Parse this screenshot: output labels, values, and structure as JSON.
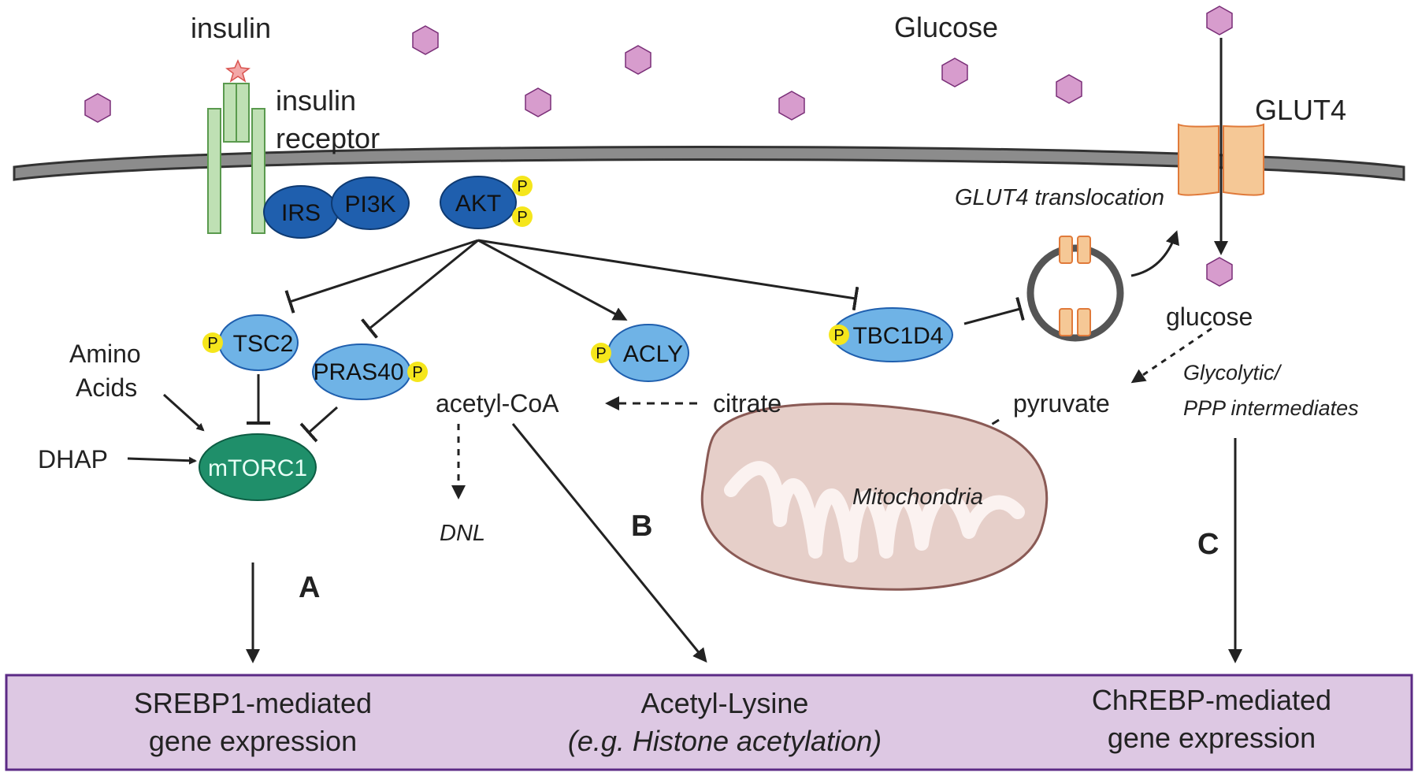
{
  "labels": {
    "insulin": "insulin",
    "glucose_top": "Glucose",
    "insulin_receptor_1": "insulin",
    "insulin_receptor_2": "receptor",
    "glut4": "GLUT4",
    "glut4_translocation": "GLUT4 translocation",
    "glucose_inside": "glucose",
    "amino_acids_1": "Amino",
    "amino_acids_2": "Acids",
    "dhap": "DHAP",
    "acetyl_coa": "acetyl-CoA",
    "citrate": "citrate",
    "pyruvate": "pyruvate",
    "glycolytic_1": "Glycolytic/",
    "glycolytic_2": "PPP intermediates",
    "dnl": "DNL",
    "mitochondria": "Mitochondria",
    "branch_a": "A",
    "branch_b": "B",
    "branch_c": "C"
  },
  "proteins": {
    "irs": "IRS",
    "pi3k": "PI3K",
    "akt": "AKT",
    "tsc2": "TSC2",
    "pras40": "PRAS40",
    "acly": "ACLY",
    "tbc1d4": "TBC1D4",
    "mtorc1": "mTORC1",
    "phospho": "P"
  },
  "outputs": {
    "srebp_1": "SREBP1-mediated",
    "srebp_2": "gene expression",
    "acetyl_lysine_1": "Acetyl-Lysine",
    "acetyl_lysine_2": "(e.g. Histone acetylation)",
    "chrebp_1": "ChREBP-mediated",
    "chrebp_2": "gene expression"
  },
  "colors": {
    "membrane": "#8c8c8c",
    "receptor": "#bfe0b4",
    "dark_protein": "#1f5fae",
    "light_protein": "#6fb3e6",
    "mtorc1": "#1f8f6a",
    "phospho": "#f5e61c",
    "glucose": "#d79ccd",
    "glut4": "#f5c896",
    "mitochondria": "#e6cfc9",
    "output_band": "#ddc8e3",
    "output_border": "#5b2a86"
  }
}
